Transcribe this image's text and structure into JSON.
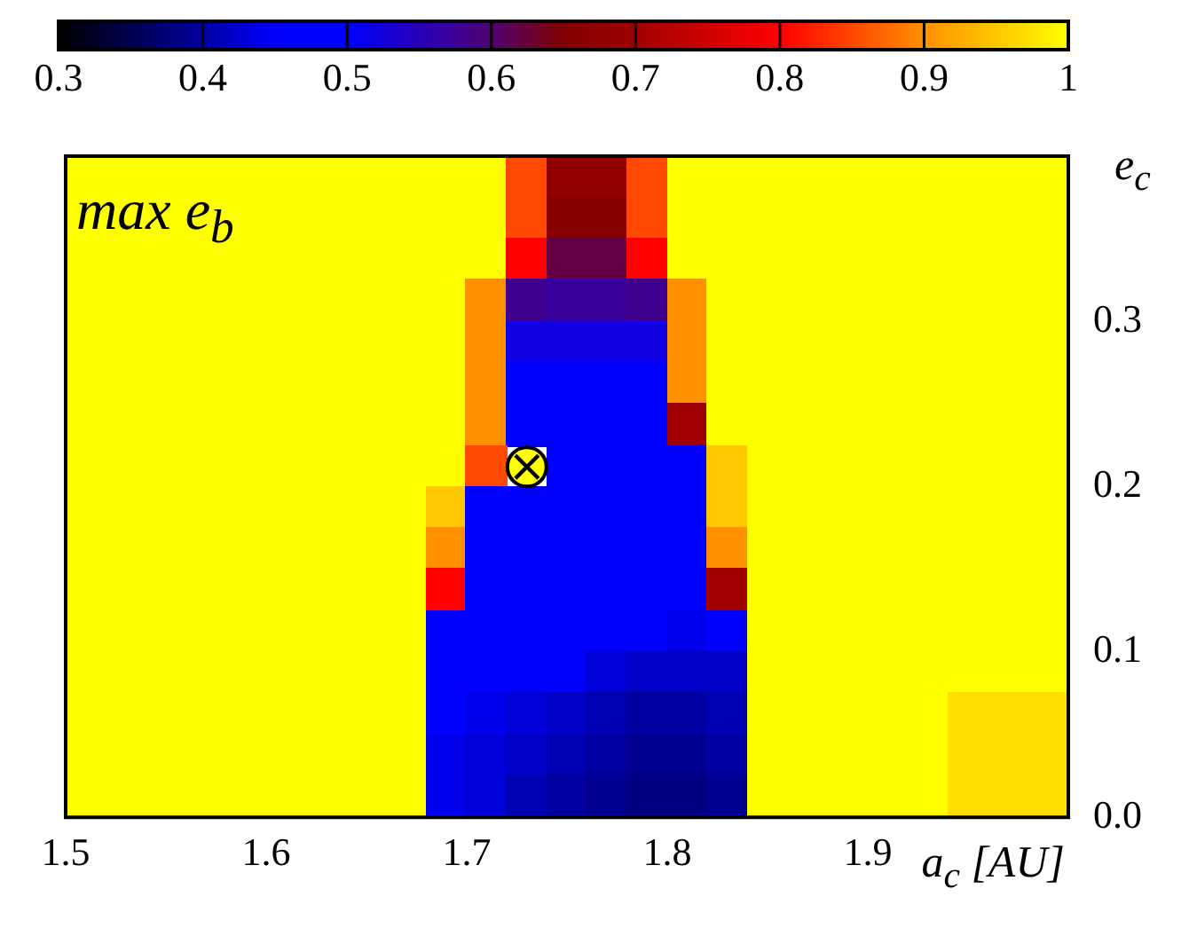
{
  "chart_data": {
    "type": "heatmap",
    "xlabel": "a$_{c}$ [AU]",
    "ylabel": "e$_{c}$",
    "annotations": [
      "max e$_{b}$"
    ],
    "xlim": [
      1.5,
      2.0
    ],
    "ylim": [
      0,
      0.4
    ],
    "xticks": [
      1.5,
      1.6,
      1.7,
      1.8,
      1.9
    ],
    "yticks": [
      {
        "value": 0,
        "label": "0.0"
      },
      0.1,
      0.2,
      0.3
    ],
    "clim": [
      0.3,
      1
    ],
    "cticks": [
      0.3,
      0.4,
      0.5,
      0.6,
      0.7,
      0.8,
      0.9,
      1
    ],
    "cells": [
      [
        1,
        1,
        1,
        1,
        1,
        1,
        1,
        1,
        1,
        1,
        1,
        0.85,
        0.68,
        0.68,
        0.85,
        1,
        1,
        1,
        1,
        1,
        1,
        1,
        1,
        1,
        1
      ],
      [
        1,
        1,
        1,
        1,
        1,
        1,
        1,
        1,
        1,
        1,
        1,
        0.85,
        0.66,
        0.66,
        0.85,
        1,
        1,
        1,
        1,
        1,
        1,
        1,
        1,
        1,
        1
      ],
      [
        1,
        1,
        1,
        1,
        1,
        1,
        1,
        1,
        1,
        1,
        1,
        0.8,
        0.62,
        0.62,
        0.8,
        1,
        1,
        1,
        1,
        1,
        1,
        1,
        1,
        1,
        1
      ],
      [
        1,
        1,
        1,
        1,
        1,
        1,
        1,
        1,
        1,
        1,
        0.9,
        0.58,
        0.57,
        0.57,
        0.58,
        0.9,
        1,
        1,
        1,
        1,
        1,
        1,
        1,
        1,
        1
      ],
      [
        1,
        1,
        1,
        1,
        1,
        1,
        1,
        1,
        1,
        1,
        0.9,
        0.52,
        0.52,
        0.52,
        0.52,
        0.9,
        1,
        1,
        1,
        1,
        1,
        1,
        1,
        1,
        1
      ],
      [
        1,
        1,
        1,
        1,
        1,
        1,
        1,
        1,
        1,
        1,
        0.9,
        0.45,
        0.45,
        0.45,
        0.45,
        0.9,
        1,
        1,
        1,
        1,
        1,
        1,
        1,
        1,
        1
      ],
      [
        1,
        1,
        1,
        1,
        1,
        1,
        1,
        1,
        1,
        1,
        0.9,
        0.45,
        0.45,
        0.45,
        0.45,
        0.7,
        1,
        1,
        1,
        1,
        1,
        1,
        1,
        1,
        1
      ],
      [
        1,
        1,
        1,
        1,
        1,
        1,
        1,
        1,
        1,
        1,
        0.85,
        null,
        0.45,
        0.45,
        0.45,
        0.45,
        0.95,
        1,
        1,
        1,
        1,
        1,
        1,
        1,
        1
      ],
      [
        1,
        1,
        1,
        1,
        1,
        1,
        1,
        1,
        1,
        0.95,
        0.45,
        0.45,
        0.45,
        0.45,
        0.45,
        0.45,
        0.95,
        1,
        1,
        1,
        1,
        1,
        1,
        1,
        1
      ],
      [
        1,
        1,
        1,
        1,
        1,
        1,
        1,
        1,
        1,
        0.9,
        0.45,
        0.45,
        0.45,
        0.45,
        0.45,
        0.45,
        0.9,
        1,
        1,
        1,
        1,
        1,
        1,
        1,
        1
      ],
      [
        1,
        1,
        1,
        1,
        1,
        1,
        1,
        1,
        1,
        0.8,
        0.45,
        0.45,
        0.45,
        0.45,
        0.45,
        0.45,
        0.7,
        1,
        1,
        1,
        1,
        1,
        1,
        1,
        1
      ],
      [
        1,
        1,
        1,
        1,
        1,
        1,
        1,
        1,
        1,
        0.45,
        0.45,
        0.45,
        0.45,
        0.45,
        0.45,
        0.44,
        0.45,
        1,
        1,
        1,
        1,
        1,
        1,
        1,
        1
      ],
      [
        1,
        1,
        1,
        1,
        1,
        1,
        1,
        1,
        1,
        0.45,
        0.45,
        0.45,
        0.45,
        0.43,
        0.42,
        0.42,
        0.42,
        1,
        1,
        1,
        1,
        1,
        1,
        1,
        1
      ],
      [
        1,
        1,
        1,
        1,
        1,
        1,
        1,
        1,
        1,
        0.45,
        0.44,
        0.43,
        0.42,
        0.41,
        0.4,
        0.4,
        0.41,
        1,
        1,
        1,
        1,
        1,
        0.97,
        0.97,
        0.97
      ],
      [
        1,
        1,
        1,
        1,
        1,
        1,
        1,
        1,
        1,
        0.44,
        0.43,
        0.42,
        0.41,
        0.4,
        0.39,
        0.39,
        0.4,
        1,
        1,
        1,
        1,
        1,
        0.97,
        0.97,
        0.97
      ],
      [
        1,
        1,
        1,
        1,
        1,
        1,
        1,
        1,
        1,
        0.44,
        0.43,
        0.41,
        0.4,
        0.39,
        0.38,
        0.38,
        0.39,
        1,
        1,
        1,
        1,
        1,
        0.97,
        0.97,
        0.97
      ]
    ],
    "series": [
      {
        "type": "scatter",
        "x": [
          1.73
        ],
        "values": [
          0.212
        ],
        "color": "#ffff00",
        "marker": "circle"
      }
    ]
  }
}
